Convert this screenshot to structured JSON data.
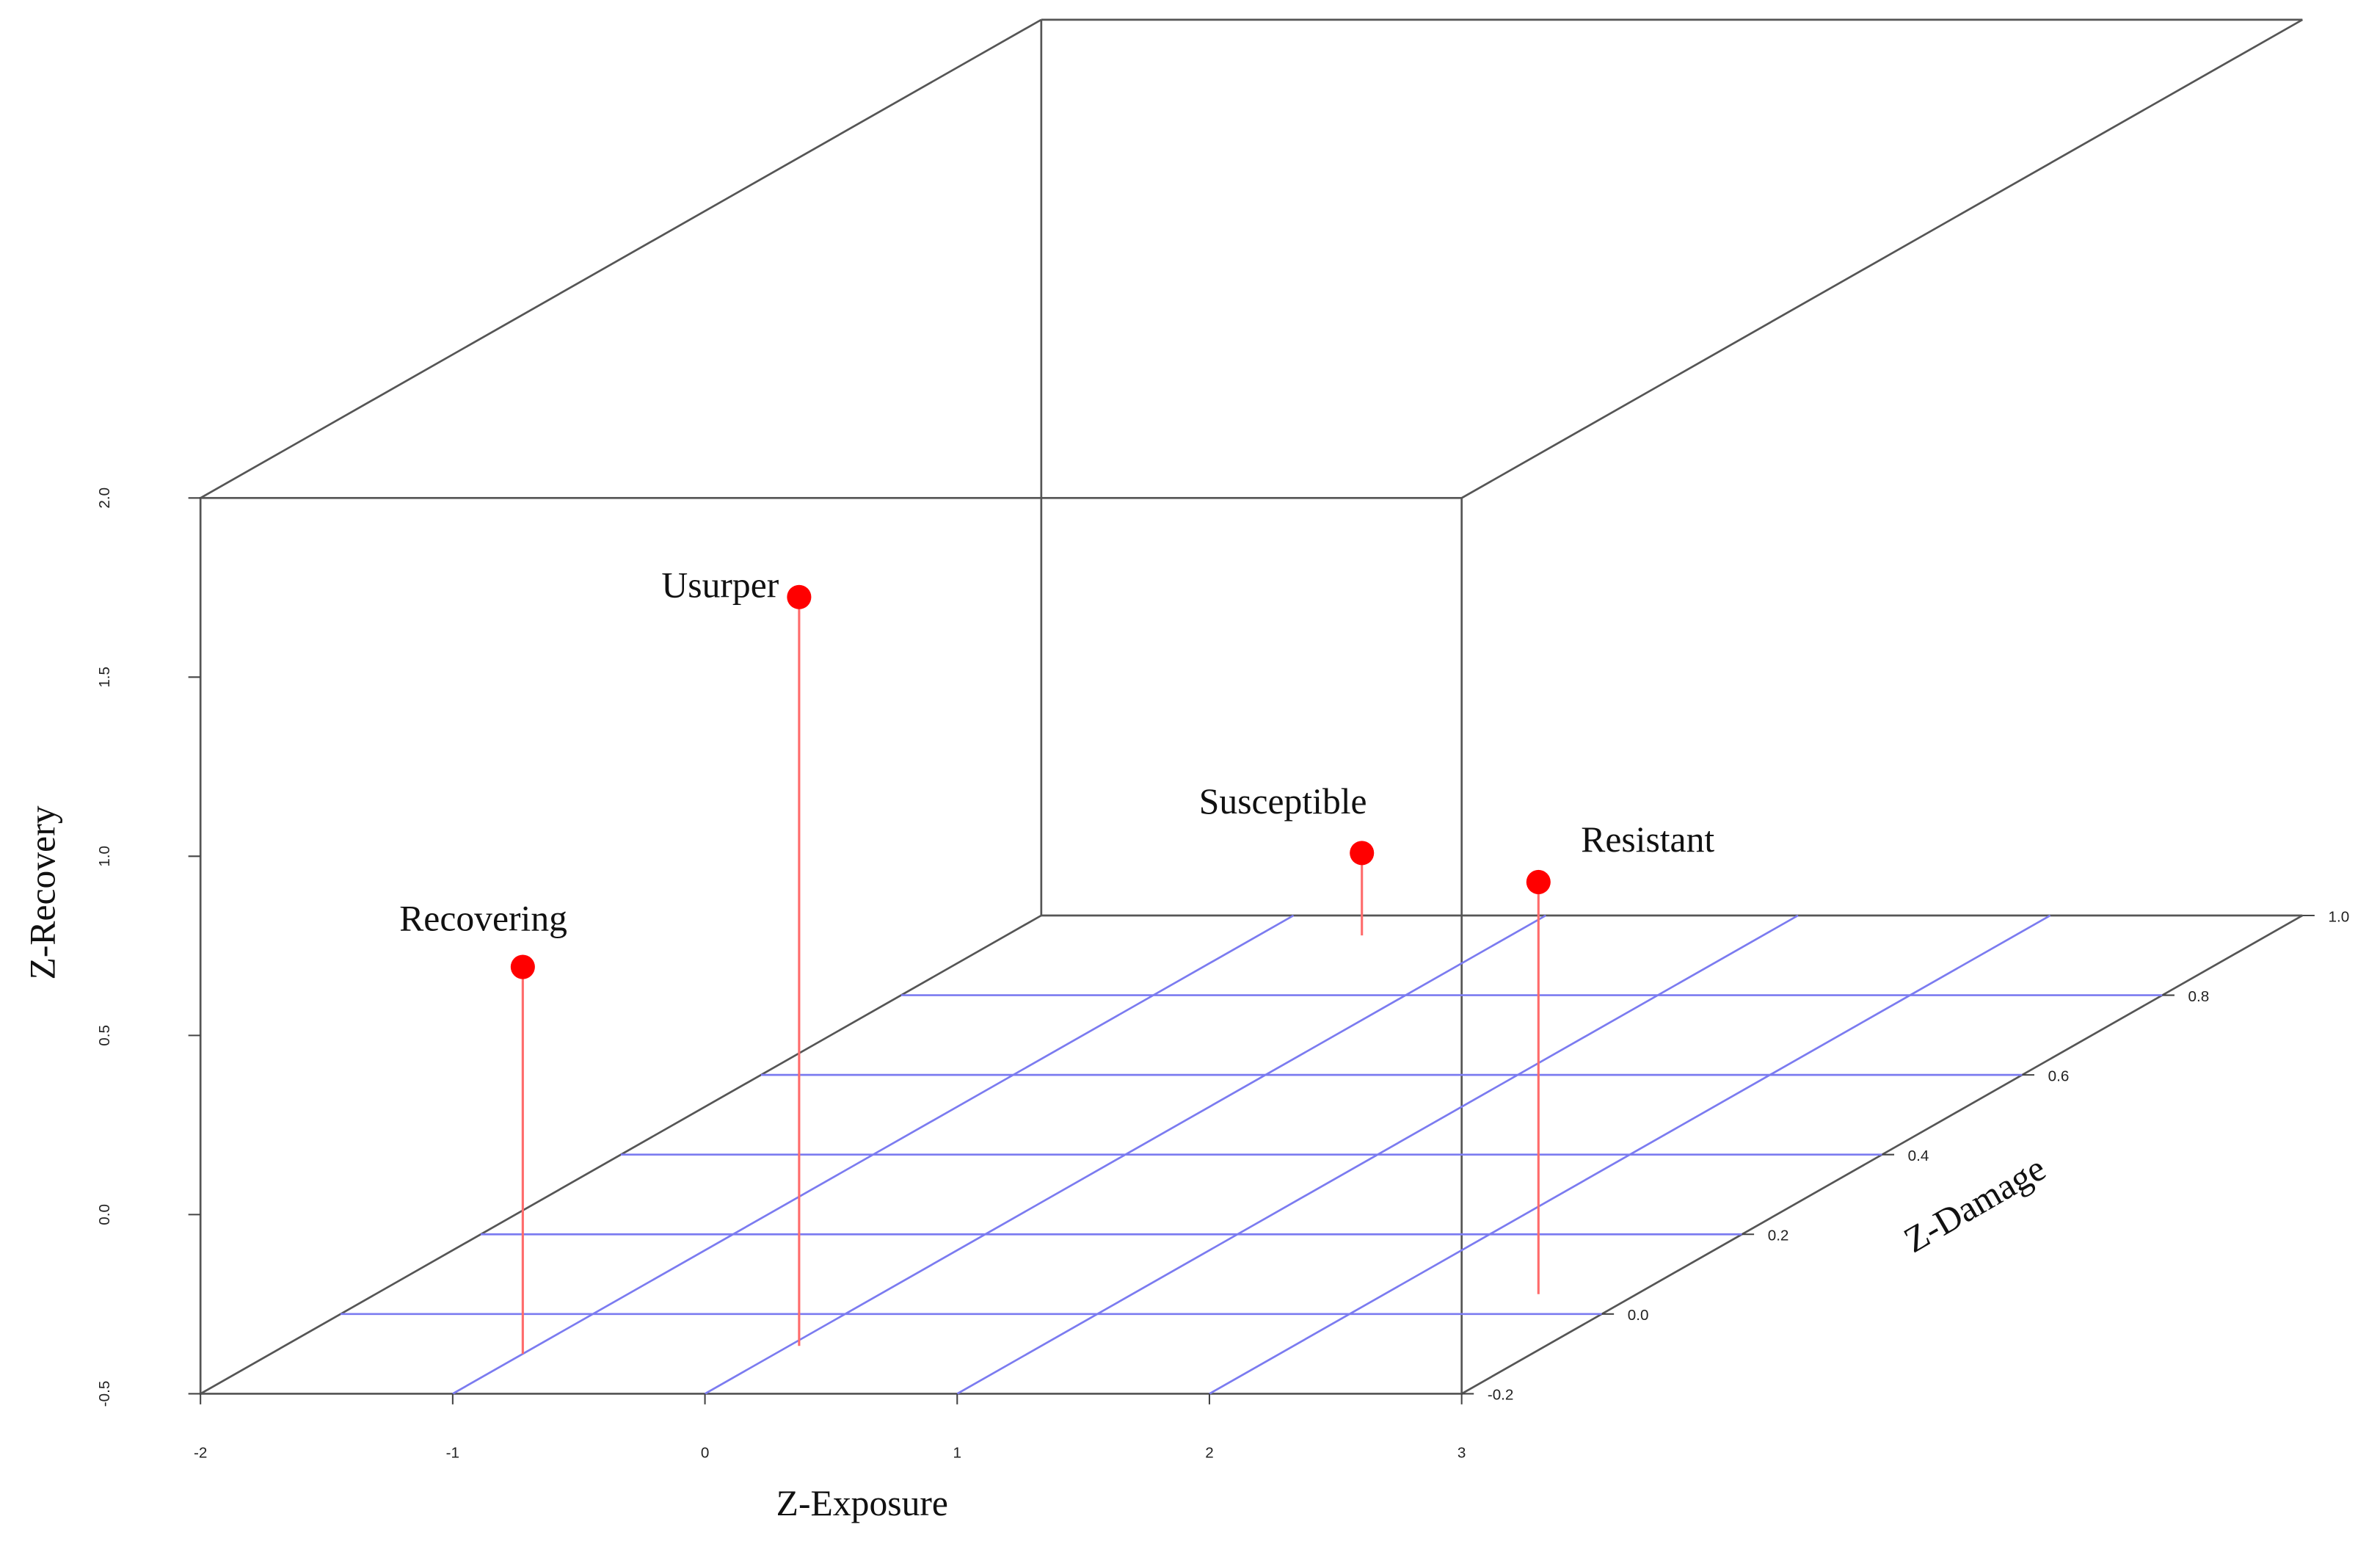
{
  "chart_data": {
    "type": "scatter3d",
    "xlabel": "Z-Exposure",
    "ylabel": "Z-Damage",
    "zlabel": "Z-Recovery",
    "labels": [
      "Recovering",
      "Usurper",
      "Susceptible",
      "Resistant"
    ],
    "x": [
      -1.0,
      0.04,
      -0.59,
      2.61
    ],
    "y": [
      -0.1,
      -0.08,
      0.95,
      0.05
    ],
    "z": [
      0.58,
      1.59,
      -0.27,
      0.65
    ],
    "xlim": [
      -2,
      3
    ],
    "ylim": [
      -0.2,
      1.0
    ],
    "zlim": [
      -0.5,
      2.0
    ],
    "xticks": [
      -2,
      -1,
      0,
      1,
      2,
      3
    ],
    "yticks": [
      -0.2,
      {
        "value": 0,
        "label": "0.0"
      },
      0.2,
      0.4,
      0.6,
      0.8,
      {
        "value": 1,
        "label": "1.0"
      }
    ],
    "zticks": [
      -0.5,
      {
        "value": 0,
        "label": "0.0"
      },
      0.5,
      {
        "value": 1,
        "label": "1.0"
      },
      1.5,
      {
        "value": 2,
        "label": "2.0"
      }
    ],
    "grid": true,
    "grid_color": "#7b7bf0",
    "point_color": "#ff0000",
    "stem_color": "#ff6b6b"
  }
}
